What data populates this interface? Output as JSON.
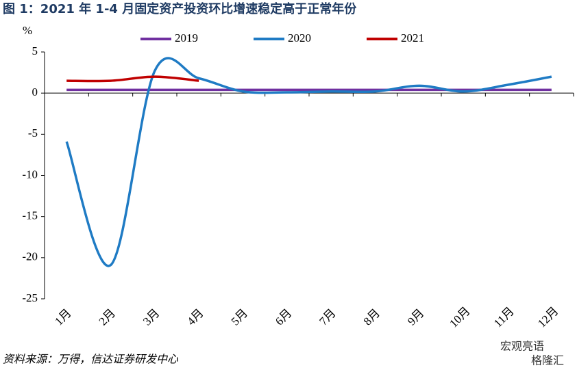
{
  "chart_data": {
    "type": "line",
    "title": "图 1：2021 年 1-4 月固定资产投资环比增速稳定高于正常年份",
    "y_label": "%",
    "categories": [
      "1月",
      "2月",
      "3月",
      "4月",
      "5月",
      "6月",
      "7月",
      "8月",
      "9月",
      "10月",
      "11月",
      "12月"
    ],
    "series": [
      {
        "name": "2019",
        "color": "#7030a0",
        "values": [
          0.4,
          0.4,
          0.4,
          0.4,
          0.4,
          0.4,
          0.4,
          0.4,
          0.4,
          0.4,
          0.4,
          0.4
        ]
      },
      {
        "name": "2020",
        "color": "#1f7bc4",
        "values": [
          -5.9,
          -20.9,
          2.7,
          1.8,
          0.2,
          0.1,
          0.2,
          0.2,
          0.9,
          0.2,
          1.0,
          2.0
        ]
      },
      {
        "name": "2021",
        "color": "#c00000",
        "values": [
          1.5,
          1.5,
          2.0,
          1.5,
          null,
          null,
          null,
          null,
          null,
          null,
          null,
          null
        ]
      }
    ],
    "ylim": [
      -25,
      5
    ],
    "yticks": [
      5,
      0,
      -5,
      -10,
      -15,
      -20,
      -25
    ],
    "source": "资料来源：万得，信达证券研发中心",
    "watermark": [
      "宏观亮语",
      "格隆汇"
    ]
  }
}
